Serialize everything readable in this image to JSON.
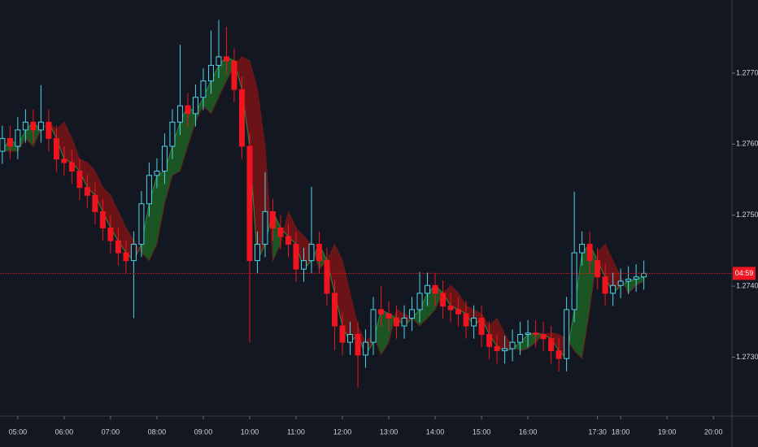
{
  "chart_data": {
    "type": "candlestick",
    "categories": [
      "04:40",
      "04:50",
      "05:00",
      "05:10",
      "05:20",
      "05:30",
      "05:40",
      "05:50",
      "06:00",
      "06:10",
      "06:20",
      "06:30",
      "06:40",
      "06:50",
      "07:00",
      "07:10",
      "07:20",
      "07:30",
      "07:40",
      "07:50",
      "08:00",
      "08:10",
      "08:20",
      "08:30",
      "08:40",
      "08:50",
      "09:00",
      "09:10",
      "09:20",
      "09:30",
      "09:40",
      "09:50",
      "10:00",
      "10:10",
      "10:20",
      "10:30",
      "10:40",
      "10:50",
      "11:00",
      "11:10",
      "11:20",
      "11:30",
      "11:40",
      "11:50",
      "12:00",
      "12:10",
      "12:20",
      "12:30",
      "12:40",
      "12:50",
      "13:00",
      "13:10",
      "13:20",
      "13:30",
      "13:40",
      "13:50",
      "14:00",
      "14:10",
      "14:20",
      "14:30",
      "14:40",
      "14:50",
      "15:00",
      "15:10",
      "15:20",
      "15:30",
      "15:40",
      "15:50",
      "16:00",
      "16:10",
      "16:20",
      "16:30",
      "16:40",
      "16:50",
      "17:00",
      "17:10",
      "17:20",
      "17:30",
      "17:40",
      "17:50",
      "18:00",
      "18:10",
      "18:20",
      "18:30"
    ],
    "open": [
      1.2759,
      1.27608,
      1.27597,
      1.2762,
      1.27631,
      1.2762,
      1.27631,
      1.27608,
      1.27579,
      1.27574,
      1.27562,
      1.27539,
      1.27528,
      1.27505,
      1.27482,
      1.27464,
      1.27447,
      1.27436,
      1.27459,
      1.27516,
      1.27556,
      1.27562,
      1.27597,
      1.27631,
      1.27654,
      1.27643,
      1.27666,
      1.27689,
      1.27711,
      1.27723,
      1.27717,
      1.27677,
      1.27597,
      1.27436,
      1.27459,
      1.27505,
      1.27482,
      1.2747,
      1.27459,
      1.27424,
      1.27436,
      1.27459,
      1.27436,
      1.2739,
      1.27344,
      1.27321,
      1.27332,
      1.27303,
      1.27321,
      1.27367,
      1.27361,
      1.27355,
      1.27344,
      1.27355,
      1.27367,
      1.2739,
      1.27401,
      1.2739,
      1.27372,
      1.27367,
      1.27361,
      1.27344,
      1.27355,
      1.27332,
      1.27315,
      1.27309,
      1.27312,
      1.27321,
      1.27332,
      1.27334,
      1.27332,
      1.27326,
      1.27309,
      1.27298,
      1.27367,
      1.27447,
      1.27459,
      1.27436,
      1.27413,
      1.2739,
      1.27401,
      1.27407,
      1.2741,
      1.27413
    ],
    "high": [
      1.27626,
      1.27626,
      1.27638,
      1.27649,
      1.27649,
      1.27683,
      1.27649,
      1.27626,
      1.27597,
      1.27592,
      1.2758,
      1.27557,
      1.27546,
      1.27523,
      1.275,
      1.27482,
      1.27465,
      1.27477,
      1.27534,
      1.27574,
      1.2758,
      1.27615,
      1.27649,
      1.2774,
      1.27672,
      1.27684,
      1.27707,
      1.2776,
      1.27775,
      1.27765,
      1.27735,
      1.27695,
      1.27615,
      1.27477,
      1.2756,
      1.27523,
      1.275,
      1.27488,
      1.27477,
      1.27454,
      1.2754,
      1.27477,
      1.27454,
      1.27408,
      1.27362,
      1.2735,
      1.2735,
      1.27339,
      1.27385,
      1.274,
      1.27379,
      1.27373,
      1.27373,
      1.27385,
      1.2742,
      1.27419,
      1.27419,
      1.27408,
      1.2739,
      1.27385,
      1.27379,
      1.27373,
      1.27373,
      1.2735,
      1.27333,
      1.2733,
      1.27339,
      1.2735,
      1.27352,
      1.27352,
      1.2735,
      1.27344,
      1.27327,
      1.27385,
      1.27533,
      1.27477,
      1.27477,
      1.27454,
      1.27431,
      1.27419,
      1.27425,
      1.27428,
      1.27431,
      1.27436
    ],
    "low": [
      1.27572,
      1.27579,
      1.27579,
      1.27602,
      1.27602,
      1.27602,
      1.2759,
      1.27561,
      1.27556,
      1.27544,
      1.27521,
      1.2751,
      1.27487,
      1.27464,
      1.27446,
      1.27429,
      1.27418,
      1.27355,
      1.27441,
      1.27498,
      1.27538,
      1.27544,
      1.27579,
      1.27613,
      1.27625,
      1.27625,
      1.27648,
      1.27671,
      1.27693,
      1.27699,
      1.27659,
      1.27579,
      1.27321,
      1.27418,
      1.27441,
      1.27464,
      1.27452,
      1.27441,
      1.27406,
      1.27406,
      1.27418,
      1.27418,
      1.27372,
      1.2731,
      1.27303,
      1.27303,
      1.27257,
      1.27285,
      1.27303,
      1.27343,
      1.27337,
      1.27326,
      1.27326,
      1.27337,
      1.27349,
      1.27372,
      1.27372,
      1.27354,
      1.27349,
      1.27343,
      1.27326,
      1.27326,
      1.27314,
      1.27297,
      1.27291,
      1.27291,
      1.27294,
      1.27303,
      1.27314,
      1.27314,
      1.27308,
      1.27291,
      1.2728,
      1.2728,
      1.27349,
      1.27429,
      1.27418,
      1.27395,
      1.27372,
      1.27372,
      1.27383,
      1.27389,
      1.27392,
      1.27395
    ],
    "close": [
      1.27608,
      1.27597,
      1.2762,
      1.27631,
      1.2762,
      1.27631,
      1.27608,
      1.27579,
      1.27574,
      1.27562,
      1.27539,
      1.27528,
      1.27505,
      1.27482,
      1.27464,
      1.27447,
      1.27436,
      1.27459,
      1.27516,
      1.27556,
      1.27562,
      1.27597,
      1.27631,
      1.27654,
      1.27643,
      1.27666,
      1.27689,
      1.27711,
      1.27723,
      1.27717,
      1.27677,
      1.27597,
      1.27436,
      1.27459,
      1.27505,
      1.27482,
      1.2747,
      1.27459,
      1.27424,
      1.27436,
      1.27459,
      1.27436,
      1.2739,
      1.27344,
      1.27321,
      1.27332,
      1.27303,
      1.27321,
      1.27367,
      1.27361,
      1.27355,
      1.27344,
      1.27355,
      1.27367,
      1.2739,
      1.27401,
      1.2739,
      1.27372,
      1.27367,
      1.27361,
      1.27344,
      1.27355,
      1.27332,
      1.27315,
      1.27309,
      1.27312,
      1.27321,
      1.27332,
      1.27334,
      1.27332,
      1.27326,
      1.27309,
      1.27298,
      1.27367,
      1.27447,
      1.27459,
      1.27436,
      1.27413,
      1.2739,
      1.27401,
      1.27407,
      1.2741,
      1.27413,
      1.27418
    ],
    "fast": [
      1.2759,
      1.27608,
      1.27597,
      1.2762,
      1.27631,
      1.2762,
      1.27631,
      1.27608,
      1.27579,
      1.27574,
      1.27562,
      1.27539,
      1.27528,
      1.27505,
      1.27482,
      1.27464,
      1.27447,
      1.27436,
      1.27459,
      1.27516,
      1.27556,
      1.27562,
      1.27597,
      1.27631,
      1.27654,
      1.27643,
      1.27666,
      1.27689,
      1.27711,
      1.27723,
      1.27717,
      1.27677,
      1.27597,
      1.27436,
      1.27459,
      1.27505,
      1.27482,
      1.2747,
      1.27459,
      1.27424,
      1.27436,
      1.27459,
      1.27436,
      1.2739,
      1.27344,
      1.27321,
      1.27332,
      1.27303,
      1.27321,
      1.27367,
      1.27361,
      1.27355,
      1.27344,
      1.27355,
      1.27367,
      1.2739,
      1.27401,
      1.2739,
      1.27372,
      1.27367,
      1.27361,
      1.27344,
      1.27355,
      1.27332,
      1.27315,
      1.27309,
      1.27312,
      1.27321,
      1.27332,
      1.27334,
      1.27332,
      1.27326,
      1.27309,
      1.27298,
      1.27367,
      1.27447,
      1.27459,
      1.27436,
      1.27413,
      1.2739,
      1.27401,
      1.27407,
      1.2741,
      1.27413
    ],
    "slow": [
      1.2759,
      1.2759,
      1.2759,
      1.27608,
      1.27597,
      1.2762,
      1.27631,
      1.2762,
      1.27631,
      1.27608,
      1.27579,
      1.27574,
      1.27562,
      1.27539,
      1.27528,
      1.27505,
      1.27482,
      1.27464,
      1.27447,
      1.27436,
      1.27459,
      1.27516,
      1.27556,
      1.27562,
      1.27597,
      1.27631,
      1.27654,
      1.27643,
      1.27666,
      1.27689,
      1.27711,
      1.27723,
      1.27717,
      1.27677,
      1.27597,
      1.27436,
      1.27459,
      1.27505,
      1.27482,
      1.2747,
      1.27459,
      1.27424,
      1.27436,
      1.27459,
      1.27436,
      1.2739,
      1.27344,
      1.27321,
      1.27332,
      1.27303,
      1.27321,
      1.27367,
      1.27361,
      1.27355,
      1.27344,
      1.27355,
      1.27367,
      1.2739,
      1.27401,
      1.2739,
      1.27372,
      1.27367,
      1.27361,
      1.27344,
      1.27355,
      1.27332,
      1.27315,
      1.27309,
      1.27312,
      1.27321,
      1.27332,
      1.27334,
      1.27332,
      1.27326,
      1.27309,
      1.27298,
      1.27367,
      1.27447,
      1.27459,
      1.27436,
      1.27413,
      1.2739,
      1.27401,
      1.27407
    ],
    "up_color": "#4fd2e6",
    "down_color": "#f0141e",
    "ribbon_up": "#1d6b24",
    "ribbon_down": "#8a1414",
    "countdown": "04:59",
    "xlim": [
      "04:37",
      "20:24"
    ],
    "xticks": [
      "05:00",
      "06:00",
      "07:00",
      "08:00",
      "09:00",
      "10:00",
      "11:00",
      "12:00",
      "13:00",
      "14:00",
      "15:00",
      "16:00",
      "17:30",
      "18:00",
      "19:00",
      "20:00"
    ],
    "ylim": [
      1.27217,
      1.27803
    ],
    "yticks": [
      {
        "value": 1.273,
        "label": "1.27300"
      },
      {
        "value": 1.274,
        "label": "1.27400"
      },
      {
        "value": 1.275,
        "label": "1.27500"
      },
      {
        "value": 1.276,
        "label": "1.27600"
      },
      {
        "value": 1.277,
        "label": "1.27700"
      }
    ]
  }
}
